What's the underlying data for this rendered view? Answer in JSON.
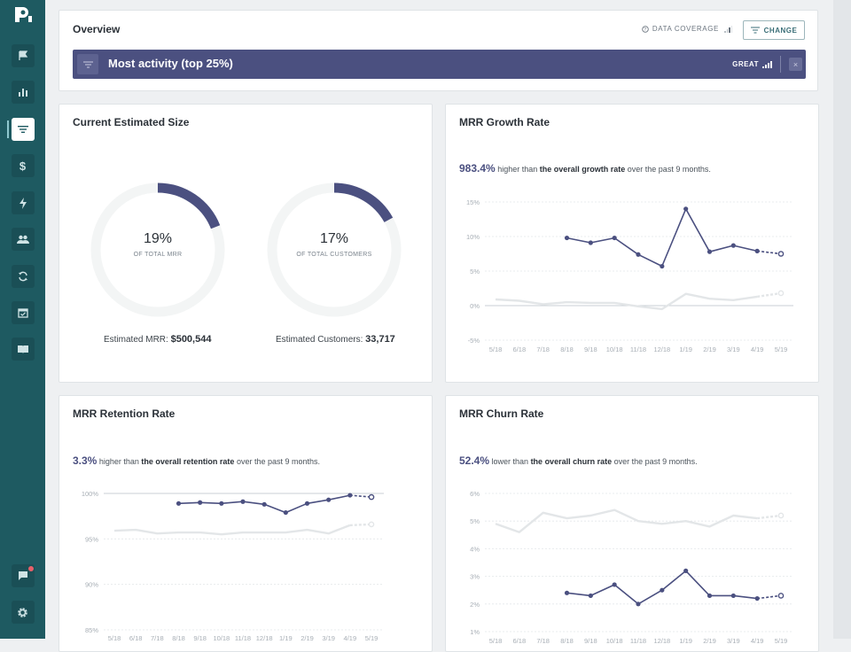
{
  "sidebar": {
    "items": [
      {
        "name": "flag-icon",
        "active": false
      },
      {
        "name": "bar-chart-icon",
        "active": false
      },
      {
        "name": "filter-icon",
        "active": true
      },
      {
        "name": "dollar-icon",
        "active": false
      },
      {
        "name": "lightning-icon",
        "active": false
      },
      {
        "name": "people-icon",
        "active": false
      },
      {
        "name": "refresh-icon",
        "active": false
      },
      {
        "name": "calendar-icon",
        "active": false
      },
      {
        "name": "book-icon",
        "active": false
      }
    ],
    "bottom": [
      {
        "name": "feedback-icon"
      },
      {
        "name": "gear-icon"
      }
    ]
  },
  "overview": {
    "title": "Overview",
    "data_coverage_label": "DATA COVERAGE",
    "change_label": "CHANGE",
    "filter_label": "Most activity (top 25%)",
    "quality_label": "GREAT",
    "close_symbol": "×"
  },
  "size_card": {
    "title": "Current Estimated Size",
    "mrr_donut": {
      "pct_label": "19%",
      "sub_label": "OF TOTAL MRR",
      "fraction": 0.19
    },
    "customers_donut": {
      "pct_label": "17%",
      "sub_label": "OF TOTAL CUSTOMERS",
      "fraction": 0.17
    },
    "mrr_label": "Estimated MRR:",
    "mrr_value": "$500,544",
    "customers_label": "Estimated Customers:",
    "customers_value": "33,717"
  },
  "growth_card": {
    "title": "MRR Growth Rate",
    "summary_pct": "983.4%",
    "summary_pre": " higher than ",
    "summary_bold": "the overall growth rate",
    "summary_post": " over the past 9 months."
  },
  "retention_card": {
    "title": "MRR Retention Rate",
    "summary_pct": "3.3%",
    "summary_pre": " higher than ",
    "summary_bold": "the overall retention rate",
    "summary_post": " over the past 9 months."
  },
  "churn_card": {
    "title": "MRR Churn Rate",
    "summary_pct": "52.4%",
    "summary_pre": " lower than ",
    "summary_bold": "the overall churn rate",
    "summary_post": " over the past 9 months."
  },
  "colors": {
    "segment": "#4b5080",
    "overall": "#e3e6e8",
    "sidebar": "#1e5a61",
    "grid": "#e4e7ea"
  },
  "chart_data": [
    {
      "type": "line",
      "id": "growth",
      "categories": [
        "5/18",
        "6/18",
        "7/18",
        "8/18",
        "9/18",
        "10/18",
        "11/18",
        "12/18",
        "1/19",
        "2/19",
        "3/19",
        "4/19",
        "5/19"
      ],
      "yticks": [
        "15%",
        "10%",
        "5%",
        "0%",
        "-5%"
      ],
      "ylim": [
        -5,
        15
      ],
      "series": [
        {
          "key": "segment",
          "values": [
            null,
            null,
            null,
            9.8,
            9.1,
            9.8,
            7.4,
            5.7,
            14.0,
            7.8,
            8.7,
            7.9,
            7.5
          ],
          "projected_from": 11
        },
        {
          "key": "overall",
          "values": [
            0.9,
            0.7,
            0.2,
            0.5,
            0.4,
            0.4,
            -0.1,
            -0.5,
            1.7,
            1.0,
            0.8,
            1.3,
            1.8
          ],
          "projected_from": 11
        }
      ],
      "baseline": 0
    },
    {
      "type": "line",
      "id": "retention",
      "categories": [
        "5/18",
        "6/18",
        "7/18",
        "8/18",
        "9/18",
        "10/18",
        "11/18",
        "12/18",
        "1/19",
        "2/19",
        "3/19",
        "4/19",
        "5/19"
      ],
      "yticks": [
        "100%",
        "95%",
        "90%",
        "85%"
      ],
      "ylim": [
        85,
        100
      ],
      "series": [
        {
          "key": "segment",
          "values": [
            null,
            null,
            null,
            98.9,
            99.0,
            98.9,
            99.1,
            98.8,
            97.9,
            98.9,
            99.3,
            99.8,
            99.6
          ],
          "projected_from": 11
        },
        {
          "key": "overall",
          "values": [
            95.9,
            96.0,
            95.6,
            95.7,
            95.7,
            95.5,
            95.7,
            95.7,
            95.7,
            96.0,
            95.6,
            96.5,
            96.6
          ],
          "projected_from": 11
        }
      ],
      "baseline": 100
    },
    {
      "type": "line",
      "id": "churn",
      "categories": [
        "5/18",
        "6/18",
        "7/18",
        "8/18",
        "9/18",
        "10/18",
        "11/18",
        "12/18",
        "1/19",
        "2/19",
        "3/19",
        "4/19",
        "5/19"
      ],
      "yticks": [
        "6%",
        "5%",
        "4%",
        "3%",
        "2%",
        "1%"
      ],
      "ylim": [
        1,
        6
      ],
      "series": [
        {
          "key": "segment",
          "values": [
            null,
            null,
            null,
            2.4,
            2.3,
            2.7,
            2.0,
            2.5,
            3.2,
            2.3,
            2.3,
            2.2,
            2.3
          ],
          "projected_from": 11
        },
        {
          "key": "overall",
          "values": [
            4.9,
            4.6,
            5.3,
            5.1,
            5.2,
            5.4,
            5.0,
            4.9,
            5.0,
            4.8,
            5.2,
            5.1,
            5.2
          ],
          "projected_from": 11
        }
      ],
      "baseline": null
    }
  ]
}
